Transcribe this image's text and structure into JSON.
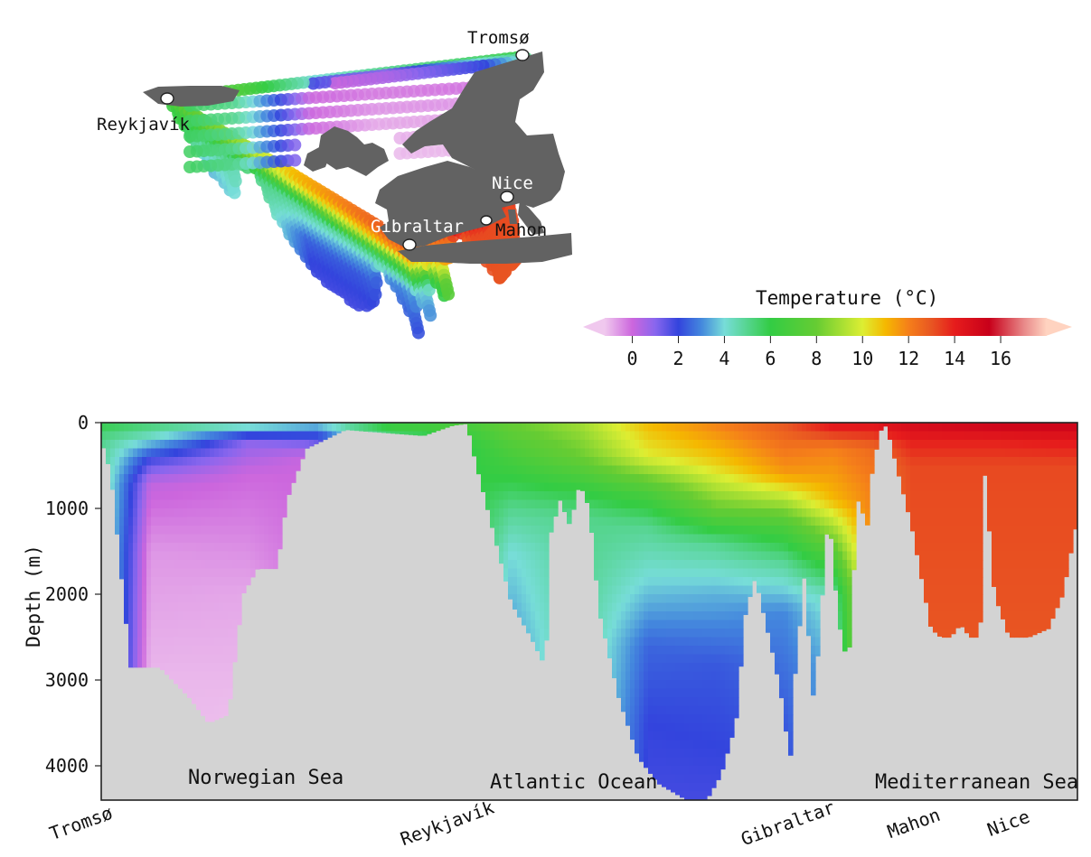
{
  "chart_data": [
    {
      "type": "map",
      "description_points": [
        {
          "name": "Tromsø"
        },
        {
          "name": "Reykjavík"
        },
        {
          "name": "Gibraltar"
        },
        {
          "name": "Nice"
        },
        {
          "name": "Mahon"
        }
      ]
    },
    {
      "type": "colorbar",
      "title": "Temperature (°C)",
      "ticks": [
        0,
        2,
        4,
        6,
        8,
        10,
        12,
        14,
        16
      ],
      "range": [
        -1.2,
        18
      ],
      "extend": "both",
      "color_stops": [
        {
          "t": -1.2,
          "color": "#f0c8ee"
        },
        {
          "t": 0.0,
          "color": "#cc66dd"
        },
        {
          "t": 1.0,
          "color": "#8866ee"
        },
        {
          "t": 2.0,
          "color": "#3344dd"
        },
        {
          "t": 3.0,
          "color": "#4488dd"
        },
        {
          "t": 4.0,
          "color": "#77ddd8"
        },
        {
          "t": 6.0,
          "color": "#33cc44"
        },
        {
          "t": 8.0,
          "color": "#66cc33"
        },
        {
          "t": 10.0,
          "color": "#ddee33"
        },
        {
          "t": 11.0,
          "color": "#f5b800"
        },
        {
          "t": 12.0,
          "color": "#f57f1a"
        },
        {
          "t": 13.0,
          "color": "#e85522"
        },
        {
          "t": 14.0,
          "color": "#e61c1c"
        },
        {
          "t": 15.5,
          "color": "#c8001a"
        },
        {
          "t": 17.0,
          "color": "#e88888"
        },
        {
          "t": 18.0,
          "color": "#ffd3c0"
        }
      ]
    },
    {
      "type": "heatmap",
      "ylabel": "Depth (m)",
      "ylim": [
        0,
        4400
      ],
      "yticks": [
        0,
        1000,
        2000,
        3000,
        4000
      ],
      "x_stations": [
        "Tromsø",
        "Reykjavík",
        "Gibraltar",
        "Mahon",
        "Nice"
      ],
      "x_station_positions": [
        0.0,
        0.375,
        0.724,
        0.853,
        0.95
      ],
      "regions": [
        "Norwegian Sea",
        "Atlantic Ocean",
        "Mediterranean Sea"
      ],
      "bathymetry_color": "#d3d3d3",
      "bottom_depth": [
        {
          "x": 0.0,
          "d": 200
        },
        {
          "x": 0.01,
          "d": 600
        },
        {
          "x": 0.03,
          "d": 2850
        },
        {
          "x": 0.06,
          "d": 2850
        },
        {
          "x": 0.09,
          "d": 3200
        },
        {
          "x": 0.11,
          "d": 3500
        },
        {
          "x": 0.13,
          "d": 3400
        },
        {
          "x": 0.145,
          "d": 2000
        },
        {
          "x": 0.16,
          "d": 1700
        },
        {
          "x": 0.18,
          "d": 1700
        },
        {
          "x": 0.19,
          "d": 900
        },
        {
          "x": 0.21,
          "d": 300
        },
        {
          "x": 0.25,
          "d": 80
        },
        {
          "x": 0.33,
          "d": 150
        },
        {
          "x": 0.36,
          "d": 30
        },
        {
          "x": 0.375,
          "d": 10
        },
        {
          "x": 0.38,
          "d": 300
        },
        {
          "x": 0.4,
          "d": 1200
        },
        {
          "x": 0.42,
          "d": 2100
        },
        {
          "x": 0.44,
          "d": 2500
        },
        {
          "x": 0.455,
          "d": 2850
        },
        {
          "x": 0.46,
          "d": 1300
        },
        {
          "x": 0.47,
          "d": 900
        },
        {
          "x": 0.48,
          "d": 1200
        },
        {
          "x": 0.49,
          "d": 700
        },
        {
          "x": 0.5,
          "d": 1000
        },
        {
          "x": 0.51,
          "d": 2200
        },
        {
          "x": 0.53,
          "d": 3200
        },
        {
          "x": 0.55,
          "d": 3900
        },
        {
          "x": 0.57,
          "d": 4200
        },
        {
          "x": 0.6,
          "d": 4400
        },
        {
          "x": 0.62,
          "d": 4400
        },
        {
          "x": 0.635,
          "d": 4100
        },
        {
          "x": 0.65,
          "d": 3500
        },
        {
          "x": 0.66,
          "d": 2200
        },
        {
          "x": 0.67,
          "d": 1800
        },
        {
          "x": 0.68,
          "d": 2300
        },
        {
          "x": 0.69,
          "d": 2800
        },
        {
          "x": 0.7,
          "d": 3400
        },
        {
          "x": 0.705,
          "d": 4100
        },
        {
          "x": 0.71,
          "d": 3000
        },
        {
          "x": 0.72,
          "d": 1800
        },
        {
          "x": 0.73,
          "d": 3300
        },
        {
          "x": 0.745,
          "d": 1000
        },
        {
          "x": 0.755,
          "d": 2300
        },
        {
          "x": 0.765,
          "d": 2850
        },
        {
          "x": 0.775,
          "d": 900
        },
        {
          "x": 0.785,
          "d": 1200
        },
        {
          "x": 0.79,
          "d": 500
        },
        {
          "x": 0.8,
          "d": 20
        },
        {
          "x": 0.805,
          "d": 50
        },
        {
          "x": 0.81,
          "d": 300
        },
        {
          "x": 0.83,
          "d": 1200
        },
        {
          "x": 0.85,
          "d": 2400
        },
        {
          "x": 0.86,
          "d": 2500
        },
        {
          "x": 0.87,
          "d": 2500
        },
        {
          "x": 0.88,
          "d": 2350
        },
        {
          "x": 0.89,
          "d": 2500
        },
        {
          "x": 0.9,
          "d": 2500
        },
        {
          "x": 0.905,
          "d": 600
        },
        {
          "x": 0.915,
          "d": 2000
        },
        {
          "x": 0.93,
          "d": 2500
        },
        {
          "x": 0.95,
          "d": 2500
        },
        {
          "x": 0.97,
          "d": 2400
        },
        {
          "x": 0.985,
          "d": 2000
        },
        {
          "x": 1.0,
          "d": 1100
        }
      ],
      "temperature_profiles": [
        {
          "x": 0.0,
          "layers": [
            {
              "d": 0,
              "t": 6.0
            },
            {
              "d": 200,
              "t": 5.0
            }
          ]
        },
        {
          "x": 0.05,
          "layers": [
            {
              "d": 0,
              "t": 5.5
            },
            {
              "d": 200,
              "t": 4.0
            },
            {
              "d": 400,
              "t": 2.0
            },
            {
              "d": 700,
              "t": 0.2
            },
            {
              "d": 1500,
              "t": -0.6
            },
            {
              "d": 3000,
              "t": -1.0
            }
          ]
        },
        {
          "x": 0.15,
          "layers": [
            {
              "d": 0,
              "t": 5.0
            },
            {
              "d": 100,
              "t": 3.0
            },
            {
              "d": 200,
              "t": 1.0
            },
            {
              "d": 600,
              "t": 0.0
            },
            {
              "d": 2000,
              "t": -0.8
            },
            {
              "d": 3500,
              "t": -1.1
            }
          ]
        },
        {
          "x": 0.22,
          "layers": [
            {
              "d": 0,
              "t": 4.0
            },
            {
              "d": 200,
              "t": 1.5
            },
            {
              "d": 400,
              "t": 0.0
            }
          ]
        },
        {
          "x": 0.3,
          "layers": [
            {
              "d": 0,
              "t": 7.0
            },
            {
              "d": 150,
              "t": 5.0
            }
          ]
        },
        {
          "x": 0.38,
          "layers": [
            {
              "d": 0,
              "t": 7.0
            },
            {
              "d": 300,
              "t": 6.0
            }
          ]
        },
        {
          "x": 0.42,
          "layers": [
            {
              "d": 0,
              "t": 8.0
            },
            {
              "d": 500,
              "t": 6.5
            },
            {
              "d": 1000,
              "t": 5.0
            },
            {
              "d": 1500,
              "t": 4.0
            },
            {
              "d": 2500,
              "t": 3.2
            }
          ]
        },
        {
          "x": 0.49,
          "layers": [
            {
              "d": 0,
              "t": 9.0
            },
            {
              "d": 400,
              "t": 8.0
            },
            {
              "d": 800,
              "t": 6.0
            },
            {
              "d": 1100,
              "t": 5.0
            }
          ]
        },
        {
          "x": 0.56,
          "layers": [
            {
              "d": 0,
              "t": 11.0
            },
            {
              "d": 400,
              "t": 10.0
            },
            {
              "d": 800,
              "t": 7.0
            },
            {
              "d": 1200,
              "t": 5.0
            },
            {
              "d": 1800,
              "t": 4.0
            },
            {
              "d": 2600,
              "t": 2.5
            },
            {
              "d": 3500,
              "t": 2.0
            },
            {
              "d": 4400,
              "t": 1.8
            }
          ]
        },
        {
          "x": 0.63,
          "layers": [
            {
              "d": 0,
              "t": 12.0
            },
            {
              "d": 500,
              "t": 10.5
            },
            {
              "d": 1000,
              "t": 8.0
            },
            {
              "d": 1400,
              "t": 5.0
            },
            {
              "d": 2000,
              "t": 3.5
            },
            {
              "d": 2800,
              "t": 2.3
            },
            {
              "d": 4400,
              "t": 1.8
            }
          ]
        },
        {
          "x": 0.7,
          "layers": [
            {
              "d": 0,
              "t": 13.0
            },
            {
              "d": 600,
              "t": 11.5
            },
            {
              "d": 1200,
              "t": 7.0
            },
            {
              "d": 1600,
              "t": 5.0
            },
            {
              "d": 2200,
              "t": 3.0
            },
            {
              "d": 4100,
              "t": 2.0
            }
          ]
        },
        {
          "x": 0.75,
          "layers": [
            {
              "d": 0,
              "t": 14.5
            },
            {
              "d": 300,
              "t": 12.0
            },
            {
              "d": 900,
              "t": 11.0
            },
            {
              "d": 1400,
              "t": 8.0
            },
            {
              "d": 2000,
              "t": 4.5
            },
            {
              "d": 2800,
              "t": 3.5
            }
          ]
        },
        {
          "x": 0.79,
          "layers": [
            {
              "d": 0,
              "t": 14.5
            },
            {
              "d": 300,
              "t": 12.5
            },
            {
              "d": 800,
              "t": 12.0
            }
          ]
        },
        {
          "x": 0.83,
          "layers": [
            {
              "d": 0,
              "t": 15.0
            },
            {
              "d": 200,
              "t": 14.0
            },
            {
              "d": 500,
              "t": 13.2
            },
            {
              "d": 2500,
              "t": 13.0
            }
          ]
        },
        {
          "x": 0.92,
          "layers": [
            {
              "d": 0,
              "t": 15.5
            },
            {
              "d": 200,
              "t": 14.0
            },
            {
              "d": 500,
              "t": 13.2
            },
            {
              "d": 2500,
              "t": 13.0
            }
          ]
        },
        {
          "x": 1.0,
          "layers": [
            {
              "d": 0,
              "t": 15.5
            },
            {
              "d": 200,
              "t": 14.2
            },
            {
              "d": 500,
              "t": 13.2
            },
            {
              "d": 2500,
              "t": 13.0
            }
          ]
        }
      ]
    }
  ]
}
